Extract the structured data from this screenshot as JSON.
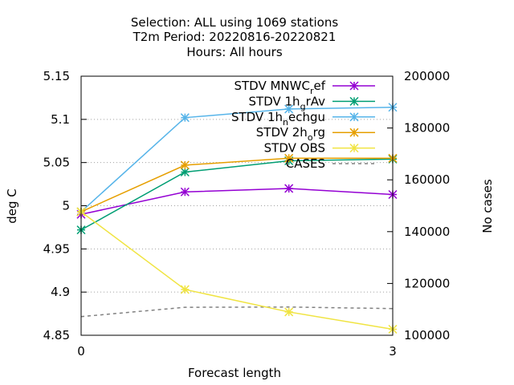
{
  "chart_data": {
    "type": "line",
    "title_lines": [
      "Selection: ALL using  1069 stations",
      "T2m   Period: 20220816-20220821",
      "Hours:  All hours"
    ],
    "xlabel": "Forecast length",
    "ylabel": "deg C",
    "y2label": "No cases",
    "x": [
      0,
      1,
      2,
      3
    ],
    "x_ticks": [
      0,
      3
    ],
    "xlim": [
      0,
      3
    ],
    "ylim": [
      4.85,
      5.15
    ],
    "y_ticks": [
      "4.85",
      "4.9",
      "4.95",
      "5",
      "5.05",
      "5.1",
      "5.15"
    ],
    "y2lim": [
      100000,
      200000
    ],
    "y2_ticks": [
      "100000",
      "120000",
      "140000",
      "160000",
      "180000",
      "200000"
    ],
    "grid": "horizontal dotted",
    "legend_position": "top-right",
    "series": [
      {
        "name": "STDV MNWC_ref",
        "legend_text": "STDV MNWC",
        "legend_sub": "r",
        "legend_tail": "ef",
        "color": "#9400d3",
        "axis": "y",
        "marker": "x",
        "values": [
          4.99,
          5.016,
          5.02,
          5.013
        ]
      },
      {
        "name": "STDV 1h_grAv",
        "legend_text": "STDV 1h",
        "legend_sub": "g",
        "legend_tail": "rAv",
        "color": "#009e73",
        "axis": "y",
        "marker": "x",
        "values": [
          4.972,
          5.039,
          5.052,
          5.054
        ]
      },
      {
        "name": "STDV 1h_nechgu",
        "legend_text": "STDV 1h",
        "legend_sub": "n",
        "legend_tail": "echgu",
        "color": "#56b4e9",
        "axis": "y",
        "marker": "x",
        "values": [
          4.993,
          5.102,
          5.112,
          5.114
        ]
      },
      {
        "name": "STDV 2h_org",
        "legend_text": "STDV 2h",
        "legend_sub": "o",
        "legend_tail": "rg",
        "color": "#e69f00",
        "axis": "y",
        "marker": "x",
        "values": [
          4.993,
          5.047,
          5.055,
          5.055
        ]
      },
      {
        "name": "STDV OBS",
        "legend_text": "STDV OBS",
        "legend_sub": "",
        "legend_tail": "",
        "color": "#f0e442",
        "axis": "y",
        "marker": "x",
        "values": [
          4.993,
          4.903,
          4.877,
          4.857
        ]
      },
      {
        "name": "CASES",
        "legend_text": "CASES",
        "legend_sub": "",
        "legend_tail": "",
        "color": "#808080",
        "axis": "y2",
        "marker": "none",
        "dashed": true,
        "values": [
          107200,
          110800,
          110900,
          110300
        ]
      }
    ]
  }
}
